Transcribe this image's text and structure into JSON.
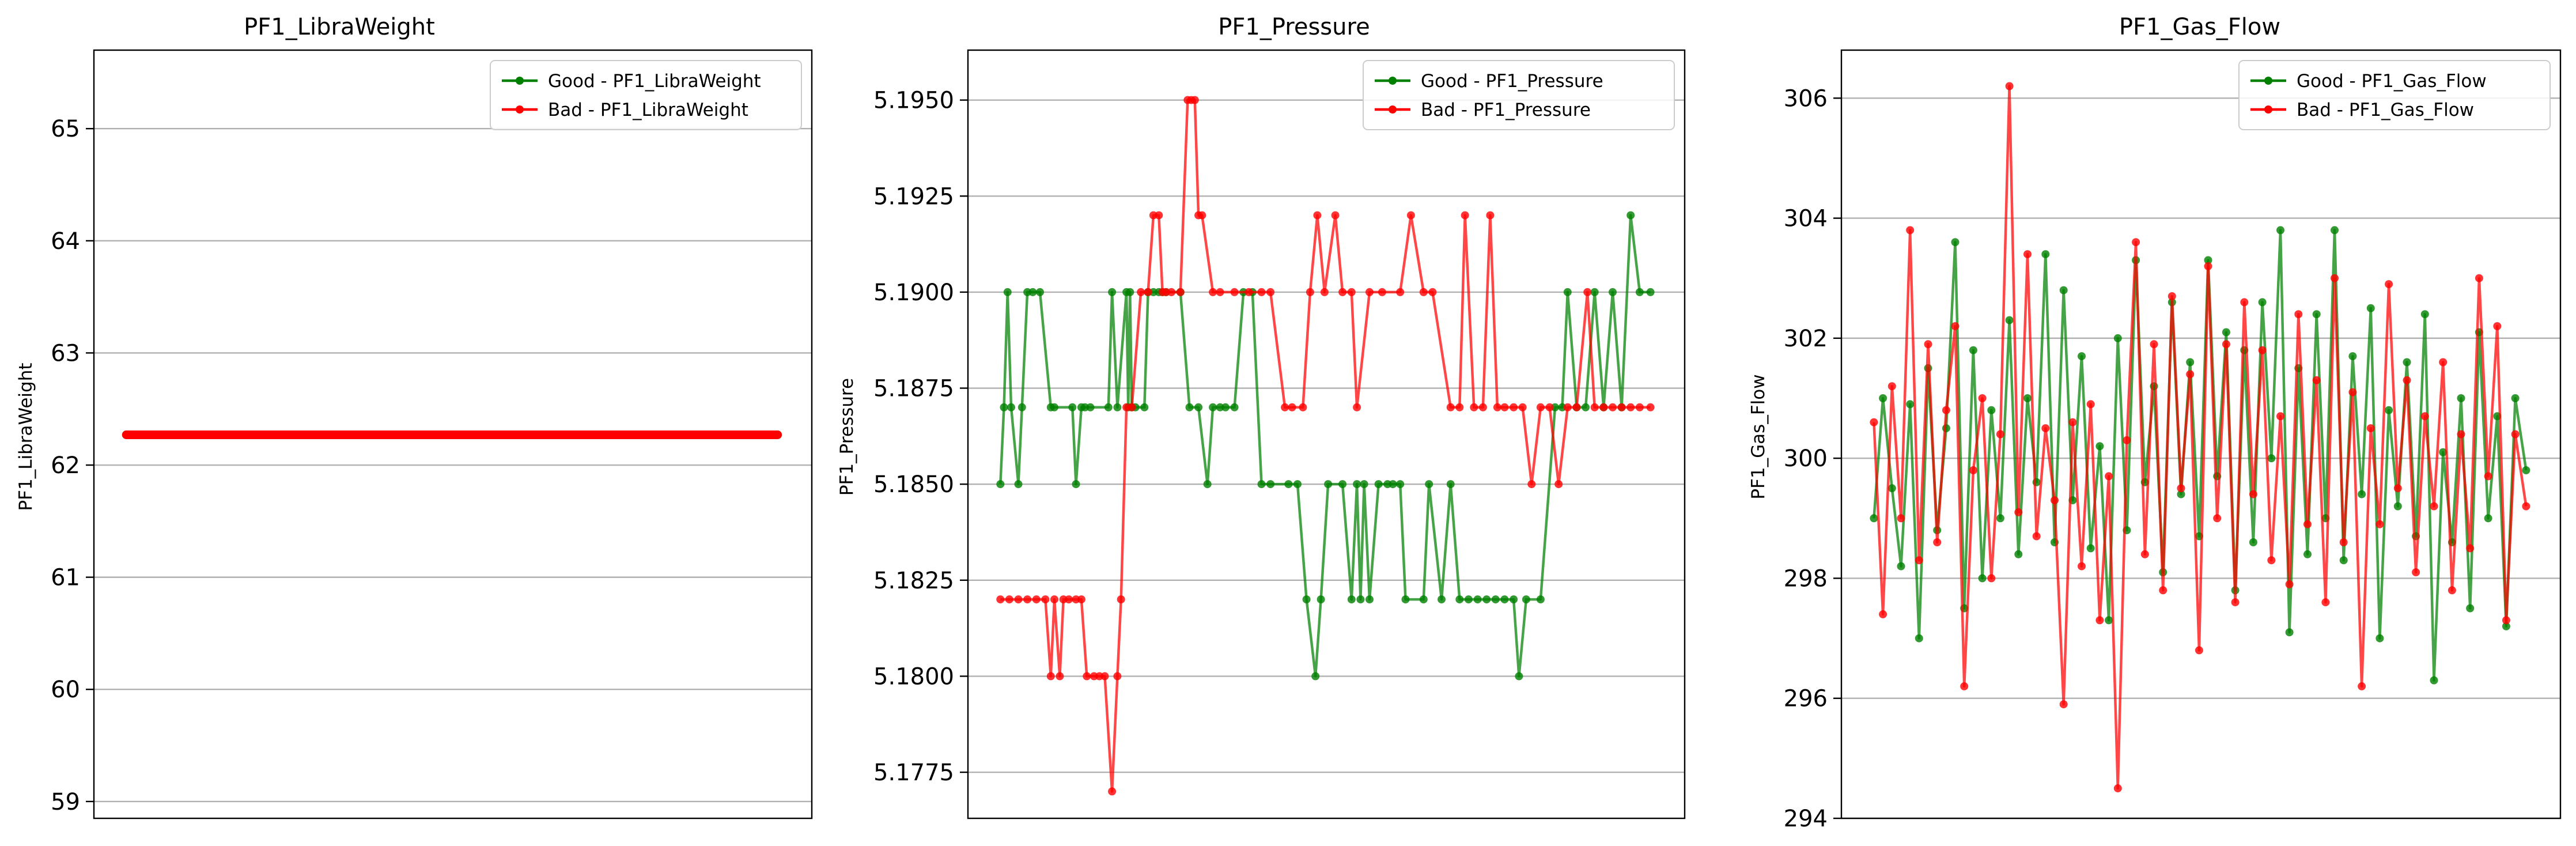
{
  "chart_data": [
    {
      "type": "line",
      "title": "PF1_LibraWeight",
      "xlabel": "",
      "ylabel": "PF1_LibraWeight",
      "ylim": [
        58.85,
        65.7
      ],
      "yticks": [
        59,
        60,
        61,
        62,
        63,
        64,
        65
      ],
      "ytick_labels": [
        "59",
        "60",
        "61",
        "62",
        "63",
        "64",
        "65"
      ],
      "grid": "horizontal",
      "legend": "top-right",
      "x_range": [
        -18,
        380
      ],
      "series": [
        {
          "name": "Good - PF1_LibraWeight",
          "color": "#008000",
          "x": [
            0,
            361
          ],
          "values": [
            62.27,
            62.27
          ]
        },
        {
          "name": "Bad - PF1_LibraWeight",
          "color": "#ff0000",
          "x": [
            0,
            361
          ],
          "values": [
            62.27,
            62.27
          ]
        }
      ]
    },
    {
      "type": "line",
      "title": "PF1_Pressure",
      "xlabel": "",
      "ylabel": "PF1_Pressure",
      "ylim": [
        5.1763,
        5.1963
      ],
      "yticks": [
        5.1775,
        5.18,
        5.1825,
        5.185,
        5.1875,
        5.19,
        5.1925,
        5.195
      ],
      "ytick_labels": [
        "5.1775",
        "5.1800",
        "5.1825",
        "5.1850",
        "5.1875",
        "5.1900",
        "5.1925",
        "5.1950"
      ],
      "grid": "horizontal",
      "legend": "top-right",
      "x_range": [
        -18,
        380
      ],
      "series": [
        {
          "name": "Good - PF1_Pressure",
          "color": "#008000",
          "x": [
            0,
            2,
            4,
            6,
            10,
            12,
            15,
            18,
            22,
            28,
            30,
            40,
            42,
            45,
            47,
            50,
            60,
            62,
            65,
            70,
            71,
            72,
            73,
            75,
            80,
            82,
            85,
            88,
            90,
            92,
            100,
            105,
            110,
            115,
            118,
            122,
            125,
            130,
            135,
            140,
            145,
            150,
            160,
            165,
            170,
            175,
            178,
            182,
            190,
            195,
            198,
            200,
            202,
            205,
            210,
            215,
            218,
            222,
            225,
            235,
            238,
            245,
            250,
            255,
            260,
            265,
            270,
            275,
            280,
            285,
            288,
            292,
            300,
            308,
            312,
            315,
            320,
            325,
            330,
            335,
            340,
            345,
            350,
            355,
            361
          ],
          "values": [
            5.185,
            5.187,
            5.19,
            5.187,
            5.185,
            5.187,
            5.19,
            5.19,
            5.19,
            5.187,
            5.187,
            5.187,
            5.185,
            5.187,
            5.187,
            5.187,
            5.187,
            5.19,
            5.187,
            5.19,
            5.187,
            5.19,
            5.187,
            5.187,
            5.187,
            5.19,
            5.19,
            5.19,
            5.19,
            5.19,
            5.19,
            5.187,
            5.187,
            5.185,
            5.187,
            5.187,
            5.187,
            5.187,
            5.19,
            5.19,
            5.185,
            5.185,
            5.185,
            5.185,
            5.182,
            5.18,
            5.182,
            5.185,
            5.185,
            5.182,
            5.185,
            5.182,
            5.185,
            5.182,
            5.185,
            5.185,
            5.185,
            5.185,
            5.182,
            5.182,
            5.185,
            5.182,
            5.185,
            5.182,
            5.182,
            5.182,
            5.182,
            5.182,
            5.182,
            5.182,
            5.18,
            5.182,
            5.182,
            5.187,
            5.187,
            5.19,
            5.187,
            5.187,
            5.19,
            5.187,
            5.19,
            5.187,
            5.192,
            5.19,
            5.19
          ]
        },
        {
          "name": "Bad - PF1_Pressure",
          "color": "#ff0000",
          "x": [
            0,
            5,
            10,
            15,
            20,
            25,
            28,
            30,
            33,
            35,
            38,
            42,
            45,
            48,
            52,
            55,
            58,
            62,
            65,
            67,
            70,
            73,
            78,
            82,
            85,
            88,
            90,
            92,
            95,
            100,
            104,
            106,
            108,
            110,
            112,
            118,
            122,
            130,
            138,
            145,
            150,
            158,
            162,
            168,
            172,
            176,
            180,
            186,
            190,
            195,
            198,
            205,
            212,
            222,
            228,
            235,
            240,
            250,
            255,
            258,
            263,
            268,
            272,
            276,
            280,
            285,
            290,
            295,
            300,
            305,
            310,
            315,
            320,
            326,
            330,
            335,
            340,
            345,
            350,
            355,
            361
          ],
          "values": [
            5.182,
            5.182,
            5.182,
            5.182,
            5.182,
            5.182,
            5.18,
            5.182,
            5.18,
            5.182,
            5.182,
            5.182,
            5.182,
            5.18,
            5.18,
            5.18,
            5.18,
            5.177,
            5.18,
            5.182,
            5.187,
            5.187,
            5.19,
            5.19,
            5.192,
            5.192,
            5.19,
            5.19,
            5.19,
            5.19,
            5.195,
            5.195,
            5.195,
            5.192,
            5.192,
            5.19,
            5.19,
            5.19,
            5.19,
            5.19,
            5.19,
            5.187,
            5.187,
            5.187,
            5.19,
            5.192,
            5.19,
            5.192,
            5.19,
            5.19,
            5.187,
            5.19,
            5.19,
            5.19,
            5.192,
            5.19,
            5.19,
            5.187,
            5.187,
            5.192,
            5.187,
            5.187,
            5.192,
            5.187,
            5.187,
            5.187,
            5.187,
            5.185,
            5.187,
            5.187,
            5.185,
            5.187,
            5.187,
            5.19,
            5.187,
            5.187,
            5.187,
            5.187,
            5.187,
            5.187,
            5.187
          ]
        }
      ]
    },
    {
      "type": "line",
      "title": "PF1_Gas_Flow",
      "xlabel": "",
      "ylabel": "PF1_Gas_Flow",
      "ylim": [
        294.0,
        306.8
      ],
      "yticks": [
        294,
        296,
        298,
        300,
        302,
        304,
        306
      ],
      "ytick_labels": [
        "294",
        "296",
        "298",
        "300",
        "302",
        "304",
        "306"
      ],
      "grid": "horizontal",
      "legend": "top-right",
      "x_range": [
        -18,
        380
      ],
      "series": [
        {
          "name": "Good - PF1_Gas_Flow",
          "color": "#008000",
          "x": [
            0,
            5,
            10,
            15,
            20,
            25,
            30,
            35,
            40,
            45,
            50,
            55,
            60,
            65,
            70,
            75,
            80,
            85,
            90,
            95,
            100,
            105,
            110,
            115,
            120,
            125,
            130,
            135,
            140,
            145,
            150,
            155,
            160,
            165,
            170,
            175,
            180,
            185,
            190,
            195,
            200,
            205,
            210,
            215,
            220,
            225,
            230,
            235,
            240,
            245,
            250,
            255,
            260,
            265,
            270,
            275,
            280,
            285,
            290,
            295,
            300,
            305,
            310,
            315,
            320,
            325,
            330,
            335,
            340,
            345,
            350,
            355,
            361
          ],
          "values": [
            299.0,
            301.0,
            299.5,
            298.2,
            300.9,
            297.0,
            301.5,
            298.8,
            300.5,
            303.6,
            297.5,
            301.8,
            298.0,
            300.8,
            299.0,
            302.3,
            298.4,
            301.0,
            299.6,
            303.4,
            298.6,
            302.8,
            299.3,
            301.7,
            298.5,
            300.2,
            297.3,
            302.0,
            298.8,
            303.3,
            299.6,
            301.2,
            298.1,
            302.6,
            299.4,
            301.6,
            298.7,
            303.3,
            299.7,
            302.1,
            297.8,
            301.8,
            298.6,
            302.6,
            300.0,
            303.8,
            297.1,
            301.5,
            298.4,
            302.4,
            299.0,
            303.8,
            298.3,
            301.7,
            299.4,
            302.5,
            297.0,
            300.8,
            299.2,
            301.6,
            298.7,
            302.4,
            296.3,
            300.1,
            298.6,
            301.0,
            297.5,
            302.1,
            299.0,
            300.7,
            297.2,
            301.0,
            299.8
          ]
        },
        {
          "name": "Bad - PF1_Gas_Flow",
          "color": "#ff0000",
          "x": [
            0,
            5,
            10,
            15,
            20,
            25,
            30,
            35,
            40,
            45,
            50,
            55,
            60,
            65,
            70,
            75,
            80,
            85,
            90,
            95,
            100,
            105,
            110,
            115,
            120,
            125,
            130,
            135,
            140,
            145,
            150,
            155,
            160,
            165,
            170,
            175,
            180,
            185,
            190,
            195,
            200,
            205,
            210,
            215,
            220,
            225,
            230,
            235,
            240,
            245,
            250,
            255,
            260,
            265,
            270,
            275,
            280,
            285,
            290,
            295,
            300,
            305,
            310,
            315,
            320,
            325,
            330,
            335,
            340,
            345,
            350,
            355,
            361
          ],
          "values": [
            300.6,
            297.4,
            301.2,
            299.0,
            303.8,
            298.3,
            301.9,
            298.6,
            300.8,
            302.2,
            296.2,
            299.8,
            301.0,
            298.0,
            300.4,
            306.2,
            299.1,
            303.4,
            298.7,
            300.5,
            299.3,
            295.9,
            300.6,
            298.2,
            300.9,
            297.3,
            299.7,
            294.5,
            300.3,
            303.6,
            298.4,
            301.9,
            297.8,
            302.7,
            299.5,
            301.4,
            296.8,
            303.2,
            299.0,
            301.9,
            297.6,
            302.6,
            299.4,
            301.8,
            298.3,
            300.7,
            297.9,
            302.4,
            298.9,
            301.3,
            297.6,
            303.0,
            298.6,
            301.1,
            296.2,
            300.5,
            298.9,
            302.9,
            299.5,
            301.3,
            298.1,
            300.7,
            299.2,
            301.6,
            297.8,
            300.4,
            298.5,
            303.0,
            299.7,
            302.2,
            297.3,
            300.4,
            299.2
          ]
        }
      ]
    }
  ]
}
